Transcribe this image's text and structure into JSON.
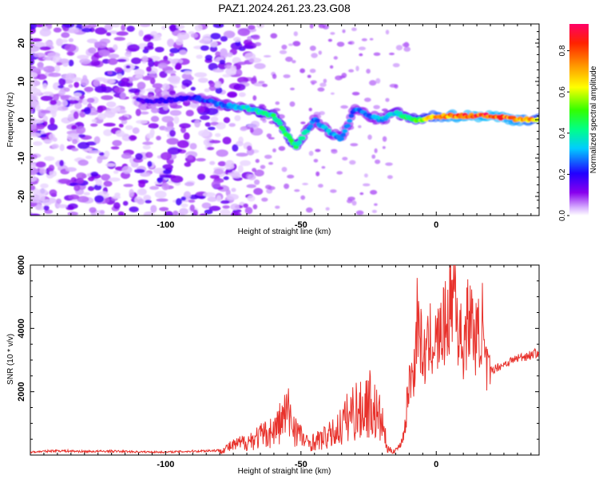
{
  "title": "PAZ1.2024.261.23.23.G08",
  "chart_data": [
    {
      "type": "heatmap",
      "xlabel": "Height of straight line (km)",
      "ylabel": "Frequency (Hz)",
      "xlim": [
        -150,
        38
      ],
      "ylim": [
        -25,
        25
      ],
      "x_ticks": [
        -100,
        -50,
        0
      ],
      "y_ticks": [
        -20,
        -10,
        0,
        10,
        20
      ],
      "colorbar": {
        "label": "Normalized spectral amplitude",
        "range": [
          0.0,
          0.93
        ],
        "ticks": [
          0.0,
          0.2,
          0.4,
          0.6,
          0.8
        ],
        "colormap": "rainbow (purple-blue-cyan-green-yellow-red)"
      },
      "ridge": {
        "x": [
          -110,
          -100,
          -90,
          -80,
          -70,
          -60,
          -55,
          -52,
          -45,
          -40,
          -35,
          -30,
          -25,
          -20,
          -15,
          -12,
          -8,
          -5,
          0,
          5,
          10,
          20,
          30,
          38
        ],
        "frequency": [
          5,
          5,
          6,
          4,
          3,
          1,
          -4,
          -7,
          0,
          -3,
          -5,
          3,
          1,
          0,
          2,
          1,
          0,
          0,
          1,
          1,
          1,
          1,
          0,
          0
        ],
        "amplitude": [
          0.18,
          0.2,
          0.22,
          0.3,
          0.4,
          0.45,
          0.55,
          0.5,
          0.3,
          0.35,
          0.3,
          0.3,
          0.3,
          0.35,
          0.4,
          0.45,
          0.55,
          0.6,
          0.75,
          0.85,
          0.88,
          0.9,
          0.85,
          0.7
        ]
      }
    },
    {
      "type": "line",
      "xlabel": "Height of straight line (km)",
      "ylabel": "SNR (10 * v/v)",
      "xlim": [
        -150,
        38
      ],
      "ylim": [
        0,
        6000
      ],
      "x_ticks": [
        -100,
        -50,
        0
      ],
      "y_ticks": [
        2000,
        4000,
        6000
      ],
      "line_color": "#e8322c",
      "series": [
        {
          "x": [
            -150,
            -140,
            -130,
            -120,
            -110,
            -100,
            -90,
            -80,
            -75,
            -70,
            -65,
            -60,
            -57,
            -55,
            -52,
            -50,
            -48,
            -45,
            -42,
            -40,
            -38,
            -35,
            -32,
            -30,
            -28,
            -25,
            -22,
            -20,
            -18,
            -16,
            -14,
            -12,
            -10,
            -8,
            -7,
            -5,
            -3,
            -2,
            0,
            3,
            5,
            7,
            8,
            10,
            12,
            15,
            17,
            18,
            20,
            25,
            30,
            35,
            38
          ],
          "values": [
            100,
            150,
            120,
            130,
            110,
            100,
            130,
            160,
            350,
            500,
            700,
            900,
            1300,
            1600,
            1000,
            700,
            450,
            500,
            600,
            700,
            800,
            1100,
            1500,
            1700,
            1600,
            2000,
            1500,
            1200,
            200,
            150,
            250,
            700,
            2500,
            3000,
            4900,
            3300,
            3600,
            4000,
            3800,
            4400,
            5000,
            6000,
            4300,
            3700,
            4800,
            3900,
            4600,
            3000,
            2700,
            2900,
            3100,
            3200,
            3300
          ]
        }
      ]
    }
  ]
}
